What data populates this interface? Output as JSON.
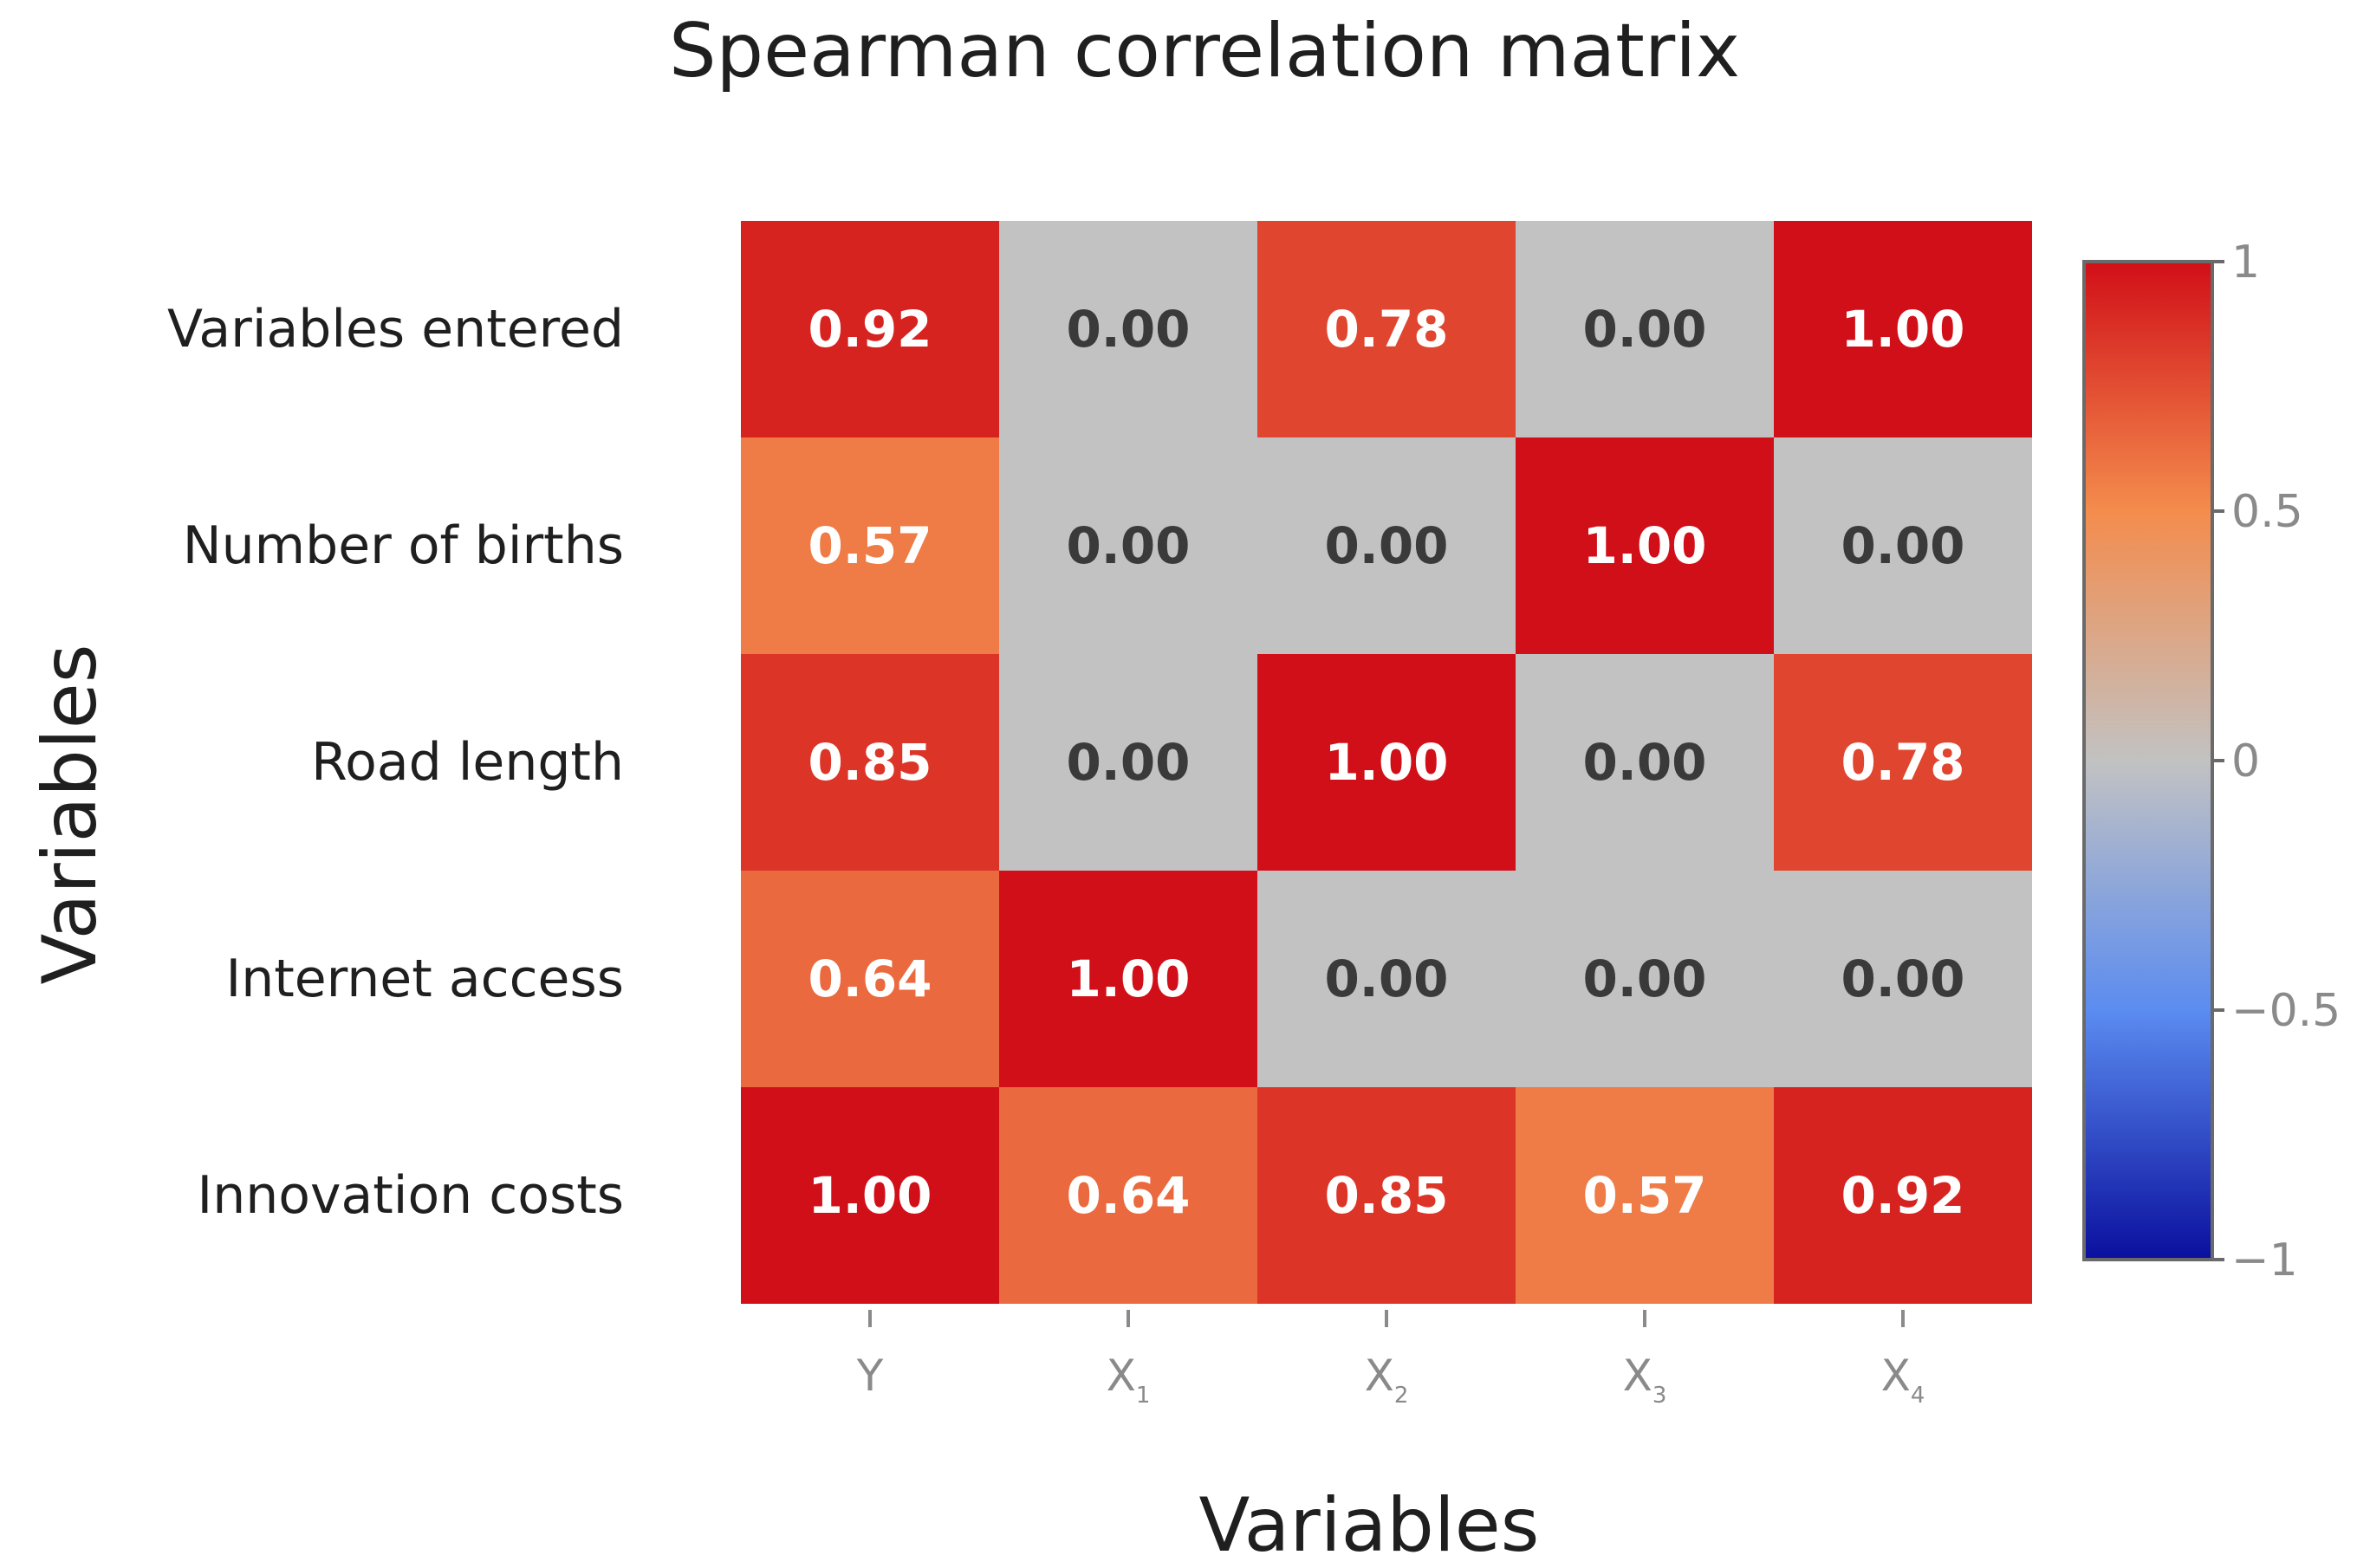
{
  "chart_data": {
    "type": "heatmap",
    "title": "Spearman correlation matrix",
    "xlabel": "Variables",
    "ylabel": "Variables",
    "x_categories": [
      {
        "base": "Y",
        "sub": ""
      },
      {
        "base": "X",
        "sub": "1"
      },
      {
        "base": "X",
        "sub": "2"
      },
      {
        "base": "X",
        "sub": "3"
      },
      {
        "base": "X",
        "sub": "4"
      }
    ],
    "y_categories": [
      "Variables entered",
      "Number of births",
      "Road length",
      "Internet access",
      "Innovation costs"
    ],
    "values": [
      [
        0.92,
        0.0,
        0.78,
        0.0,
        1.0
      ],
      [
        0.57,
        0.0,
        0.0,
        1.0,
        0.0
      ],
      [
        0.85,
        0.0,
        1.0,
        0.0,
        0.78
      ],
      [
        0.64,
        1.0,
        0.0,
        0.0,
        0.0
      ],
      [
        1.0,
        0.64,
        0.85,
        0.57,
        0.92
      ]
    ],
    "value_format": "0.00",
    "colorbar": {
      "range": [
        -1,
        1
      ],
      "ticks": [
        1,
        0.5,
        0,
        -0.5,
        -1
      ],
      "tick_labels": [
        "1",
        "0.5",
        "0",
        "−0.5",
        "−1"
      ],
      "colormap": "coolwarm",
      "placement": "right"
    },
    "colors": {
      "low": "#0a0f9e",
      "neutral": "#c2c2c2",
      "mid_high": "#f48c4d",
      "high": "#d10f18",
      "text_on_dark": "#ffffff",
      "text_on_light": "#3a3a3a"
    }
  }
}
